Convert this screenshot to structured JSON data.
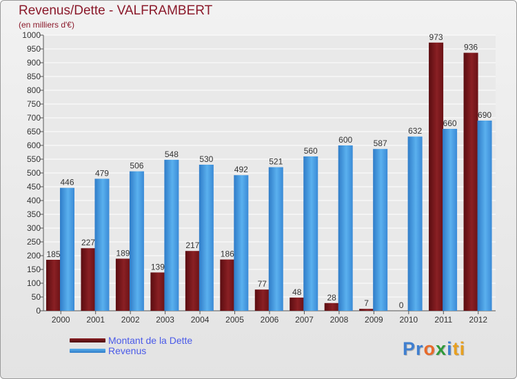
{
  "title": "Revenus/Dette - VALFRAMBERT",
  "subtitle": "(en milliers d'€)",
  "colors": {
    "series_dette": "#7a1418",
    "series_revenus": "#3f96dc",
    "title": "#8b1a2b",
    "legend_text": "#4a5ae8"
  },
  "logo": {
    "parts": [
      {
        "text": "Pr",
        "color": "#3f7fd0"
      },
      {
        "text": "o",
        "color": "#e86a2a"
      },
      {
        "text": "x",
        "color": "#2f9a3a"
      },
      {
        "text": "i",
        "color": "#3f7fd0"
      },
      {
        "text": "ti",
        "color": "#e8a020"
      }
    ]
  },
  "chart_data": {
    "type": "bar",
    "title": "Revenus/Dette - VALFRAMBERT",
    "subtitle": "(en milliers d'€)",
    "categories": [
      "2000",
      "2001",
      "2002",
      "2003",
      "2004",
      "2005",
      "2006",
      "2007",
      "2008",
      "2009",
      "2010",
      "2011",
      "2012"
    ],
    "series": [
      {
        "name": "Montant de la Dette",
        "values": [
          185,
          227,
          189,
          139,
          217,
          186,
          77,
          48,
          28,
          7,
          0,
          973,
          936
        ]
      },
      {
        "name": "Revenus",
        "values": [
          446,
          479,
          506,
          548,
          530,
          492,
          521,
          560,
          600,
          587,
          632,
          660,
          690
        ]
      }
    ],
    "ylim": [
      0,
      1000
    ],
    "yticks": [
      0,
      50,
      100,
      150,
      200,
      250,
      300,
      350,
      400,
      450,
      500,
      550,
      600,
      650,
      700,
      750,
      800,
      850,
      900,
      950,
      1000
    ],
    "grid": true,
    "legend": "bottom-left"
  }
}
